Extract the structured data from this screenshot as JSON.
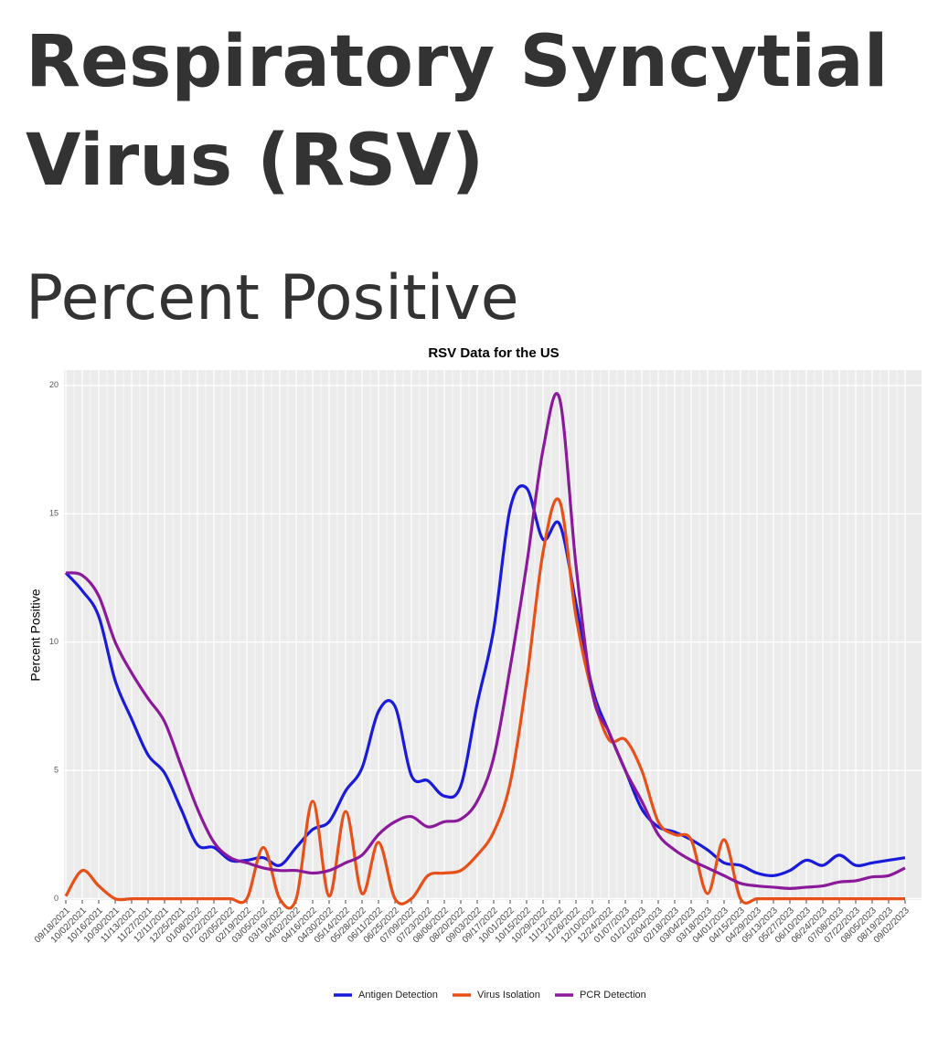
{
  "header": {
    "title": "Respiratory Syncytial Virus (RSV)",
    "subtitle": "Percent Positive"
  },
  "chart_data": {
    "type": "line",
    "title": "RSV Data for the US",
    "y_label": "Percent Positive",
    "categories": [
      "09/18/2021",
      "10/02/2021",
      "10/16/2021",
      "10/30/2021",
      "11/13/2021",
      "11/27/2021",
      "12/11/2021",
      "12/25/2021",
      "01/08/2022",
      "01/22/2022",
      "02/05/2022",
      "02/19/2022",
      "03/05/2022",
      "03/19/2022",
      "04/02/2022",
      "04/16/2022",
      "04/30/2022",
      "05/14/2022",
      "05/28/2022",
      "06/11/2022",
      "06/25/2022",
      "07/09/2022",
      "07/23/2022",
      "08/06/2022",
      "08/20/2022",
      "09/03/2022",
      "09/17/2022",
      "10/01/2022",
      "10/15/2022",
      "10/29/2022",
      "11/12/2022",
      "11/26/2022",
      "12/10/2022",
      "12/24/2022",
      "01/07/2023",
      "01/21/2023",
      "02/04/2023",
      "02/18/2023",
      "03/04/2023",
      "03/18/2023",
      "04/01/2023",
      "04/15/2023",
      "04/29/2023",
      "05/13/2023",
      "05/27/2023",
      "06/10/2023",
      "06/24/2023",
      "07/08/2023",
      "07/22/2023",
      "08/05/2023",
      "08/19/2023",
      "09/02/2023"
    ],
    "series": [
      {
        "name": "Antigen Detection",
        "color": "#1a1adb",
        "values": [
          12.7,
          12.0,
          11.0,
          8.5,
          7.0,
          5.6,
          4.9,
          3.5,
          2.1,
          2.0,
          1.5,
          1.5,
          1.6,
          1.3,
          2.0,
          2.7,
          3.0,
          4.2,
          5.1,
          7.3,
          7.5,
          4.8,
          4.6,
          4.0,
          4.4,
          7.6,
          10.5,
          15.2,
          16.0,
          14.0,
          14.6,
          11.5,
          8.2,
          6.5,
          5.0,
          3.5,
          2.8,
          2.6,
          2.3,
          1.9,
          1.4,
          1.3,
          1.0,
          0.9,
          1.1,
          1.5,
          1.3,
          1.7,
          1.3,
          1.4,
          1.5,
          1.6
        ]
      },
      {
        "name": "Virus Isolation",
        "color": "#e8501a",
        "values": [
          0.1,
          1.1,
          0.5,
          0,
          0,
          0,
          0,
          0,
          0,
          0,
          0,
          0,
          2.0,
          0,
          0,
          3.8,
          0.1,
          3.4,
          0.2,
          2.2,
          0,
          0,
          0.9,
          1.0,
          1.1,
          1.7,
          2.6,
          4.5,
          8.5,
          13.5,
          15.5,
          11.0,
          8.0,
          6.2,
          6.2,
          5.0,
          3.0,
          2.5,
          2.3,
          0.2,
          2.3,
          0,
          0,
          0,
          0,
          0,
          0,
          0,
          0,
          0,
          0,
          0
        ]
      },
      {
        "name": "PCR Detection",
        "color": "#8b1a9b",
        "values": [
          12.7,
          12.6,
          11.8,
          10.0,
          8.8,
          7.8,
          6.9,
          5.2,
          3.5,
          2.2,
          1.6,
          1.4,
          1.2,
          1.1,
          1.1,
          1.0,
          1.1,
          1.4,
          1.7,
          2.5,
          3.0,
          3.2,
          2.8,
          3.0,
          3.1,
          3.8,
          5.5,
          9.0,
          13.0,
          17.5,
          19.5,
          13.0,
          8.0,
          6.5,
          5.0,
          3.8,
          2.5,
          1.9,
          1.5,
          1.2,
          0.9,
          0.6,
          0.5,
          0.45,
          0.4,
          0.45,
          0.5,
          0.65,
          0.7,
          0.85,
          0.9,
          1.2
        ]
      }
    ],
    "ylim": [
      -0.05,
      20.6
    ],
    "yticks": [
      0,
      5,
      10,
      15,
      20
    ],
    "grid": true,
    "legend": "bottom"
  }
}
